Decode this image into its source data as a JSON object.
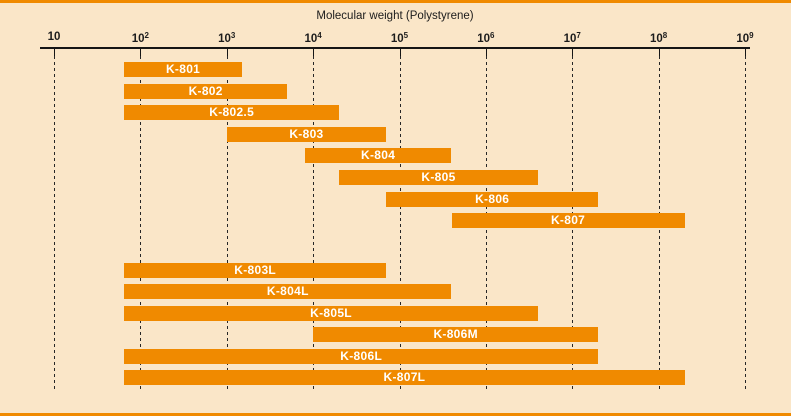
{
  "frame": {
    "accent_color": "#f08a00",
    "background_color": "#fae6c8"
  },
  "chart_data": {
    "type": "bar",
    "subtype": "horizontal-range-bars",
    "scale": "log10",
    "title": "Molecular weight (Polystyrene)",
    "xlim": [
      10,
      1000000000
    ],
    "grid": "dashed-vertical",
    "bar_color": "#f08a00",
    "bar_label_color": "#ffffff",
    "x_ticks": [
      {
        "base": "10",
        "sup": ""
      },
      {
        "base": "10",
        "sup": "2"
      },
      {
        "base": "10",
        "sup": "3"
      },
      {
        "base": "10",
        "sup": "4"
      },
      {
        "base": "10",
        "sup": "5"
      },
      {
        "base": "10",
        "sup": "6"
      },
      {
        "base": "10",
        "sup": "7"
      },
      {
        "base": "10",
        "sup": "8"
      },
      {
        "base": "10",
        "sup": "9"
      }
    ],
    "bars": [
      {
        "label": "K-801",
        "min": 65,
        "max": 1500,
        "group": "upper"
      },
      {
        "label": "K-802",
        "min": 65,
        "max": 5000,
        "group": "upper"
      },
      {
        "label": "K-802.5",
        "min": 65,
        "max": 20000,
        "group": "upper"
      },
      {
        "label": "K-803",
        "min": 1000,
        "max": 70000,
        "group": "upper"
      },
      {
        "label": "K-804",
        "min": 8000,
        "max": 400000,
        "group": "upper"
      },
      {
        "label": "K-805",
        "min": 20000,
        "max": 4000000,
        "group": "upper"
      },
      {
        "label": "K-806",
        "min": 70000,
        "max": 20000000,
        "group": "upper"
      },
      {
        "label": "K-807",
        "min": 400000,
        "max": 200000000,
        "group": "upper"
      },
      {
        "label": "K-803L",
        "min": 65,
        "max": 70000,
        "group": "lower"
      },
      {
        "label": "K-804L",
        "min": 65,
        "max": 400000,
        "group": "lower"
      },
      {
        "label": "K-805L",
        "min": 65,
        "max": 4000000,
        "group": "lower"
      },
      {
        "label": "K-806M",
        "min": 10000,
        "max": 20000000,
        "group": "lower"
      },
      {
        "label": "K-806L",
        "min": 65,
        "max": 20000000,
        "group": "lower"
      },
      {
        "label": "K-807L",
        "min": 65,
        "max": 200000000,
        "group": "lower"
      }
    ]
  }
}
